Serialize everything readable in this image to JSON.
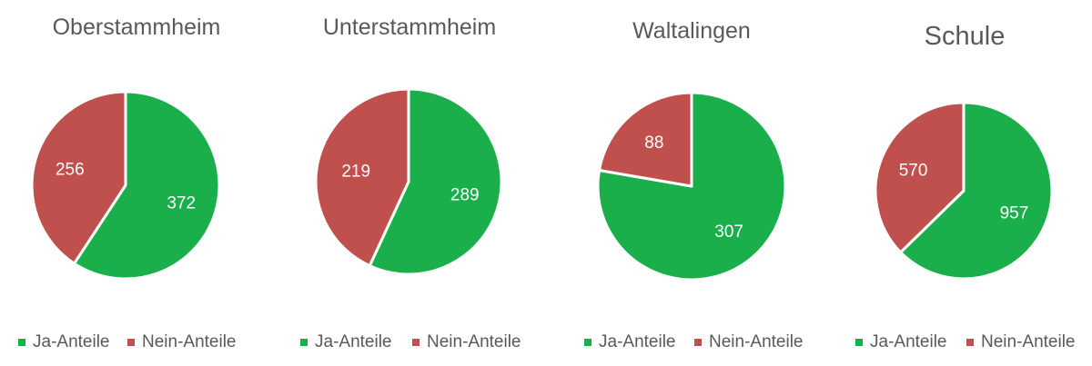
{
  "colors": {
    "ja": "#1aaf4b",
    "nein": "#c0504d"
  },
  "legend": {
    "ja_label": "Ja-Anteile",
    "nein_label": "Nein-Anteile"
  },
  "chart_data": [
    {
      "type": "pie",
      "title": "Oberstammheim",
      "categories": [
        "Ja-Anteile",
        "Nein-Anteile"
      ],
      "values": [
        372,
        256
      ]
    },
    {
      "type": "pie",
      "title": "Unterstammheim",
      "categories": [
        "Ja-Anteile",
        "Nein-Anteile"
      ],
      "values": [
        289,
        219
      ]
    },
    {
      "type": "pie",
      "title": "Waltalingen",
      "categories": [
        "Ja-Anteile",
        "Nein-Anteile"
      ],
      "values": [
        307,
        88
      ]
    },
    {
      "type": "pie",
      "title": "Schule",
      "categories": [
        "Ja-Anteile",
        "Nein-Anteile"
      ],
      "values": [
        957,
        570
      ]
    }
  ]
}
